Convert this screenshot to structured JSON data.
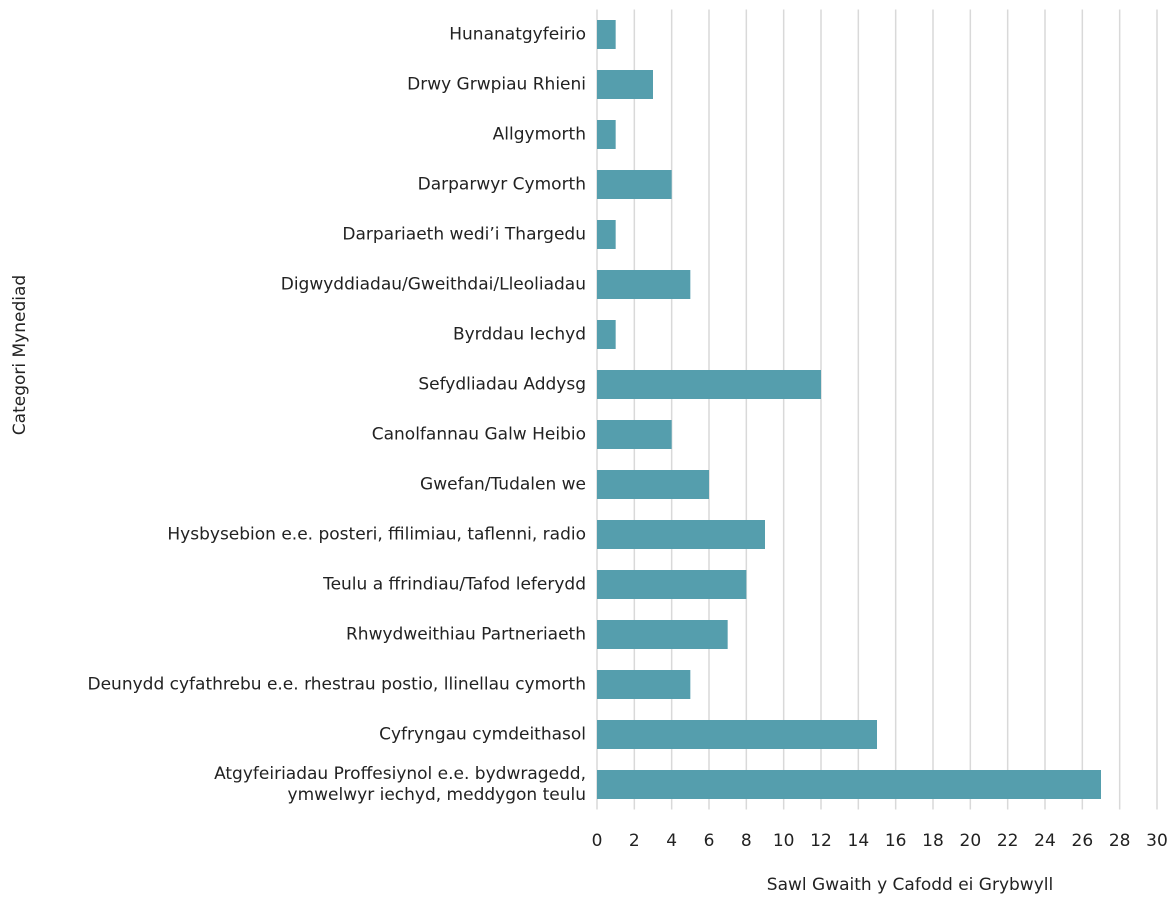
{
  "chart_data": {
    "type": "barh",
    "categories": [
      "Hunanatgyfeirio",
      "Drwy Grwpiau Rhieni",
      "Allgymorth",
      "Darparwyr Cymorth",
      "Darpariaeth wedi’i Thargedu",
      "Digwyddiadau/Gweithdai/Lleoliadau",
      "Byrddau Iechyd",
      "Sefydliadau Addysg",
      "Canolfannau Galw Heibio",
      "Gwefan/Tudalen we",
      "Hysbysebion e.e. posteri, ffilimiau, taflenni, radio",
      "Teulu a ffrindiau/Tafod leferydd",
      "Rhwydweithiau Partneriaeth",
      "Deunydd cyfathrebu e.e. rhestrau postio, llinellau cymorth",
      "Cyfryngau cymdeithasol",
      "Atgyfeiriadau Proffesiynol e.e. bydwragedd,\nymwelwyr iechyd, meddygon teulu"
    ],
    "values": [
      1,
      3,
      1,
      4,
      1,
      5,
      1,
      12,
      4,
      6,
      9,
      8,
      7,
      5,
      15,
      27
    ],
    "color": "#559ead",
    "xlabel": "Sawl Gwaith y Cafodd ei Grybwyll",
    "ylabel": "Categori Mynediad",
    "xlim": [
      0,
      30
    ],
    "xticks": [
      0,
      2,
      4,
      6,
      8,
      10,
      12,
      14,
      16,
      18,
      20,
      22,
      24,
      26,
      28,
      30
    ],
    "grid": true
  }
}
